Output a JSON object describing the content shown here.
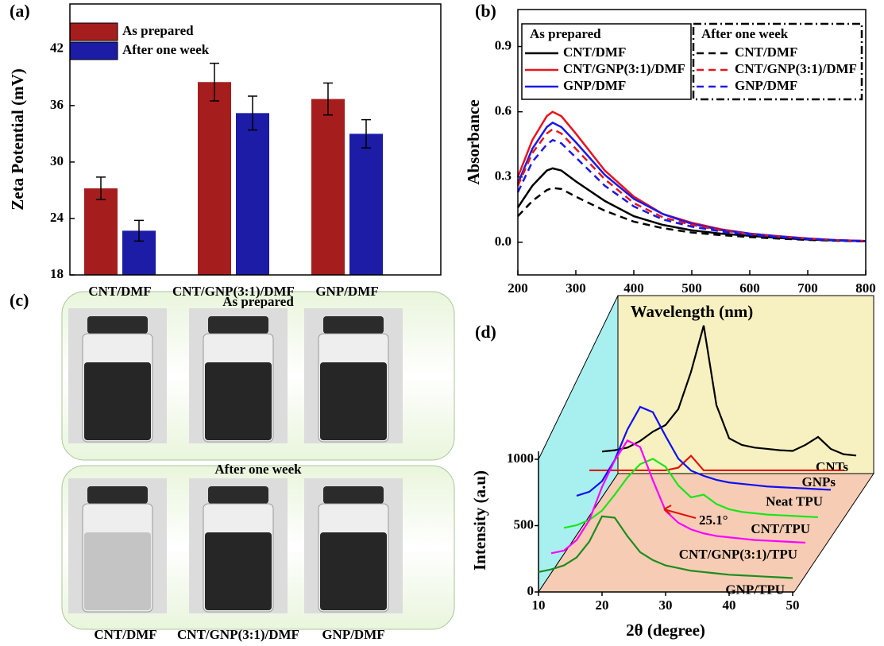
{
  "chart_data": [
    {
      "type": "bar",
      "label": "(a)",
      "ylabel": "Zeta Potential (mV)",
      "categories": [
        "CNT/DMF",
        "CNT/GNP(3:1)/DMF",
        "GNP/DMF"
      ],
      "series": [
        {
          "name": "As prepared",
          "color": "#a61d1d",
          "values": [
            27.2,
            38.5,
            36.7
          ],
          "errors": [
            1.2,
            2.0,
            1.7
          ]
        },
        {
          "name": "After one week",
          "color": "#1c1ca6",
          "values": [
            22.7,
            35.2,
            33.0
          ],
          "errors": [
            1.1,
            1.8,
            1.5
          ]
        }
      ],
      "ylim": [
        18,
        46.8
      ],
      "yticks": [
        18,
        24,
        30,
        36,
        42
      ],
      "legend": "upper left"
    },
    {
      "type": "line",
      "label": "(b)",
      "xlabel": "Wavelength (nm)",
      "ylabel": "Absorbance",
      "legend_titles": [
        "As prepared",
        "After one week"
      ],
      "x": [
        200,
        225,
        250,
        260,
        275,
        300,
        350,
        400,
        450,
        500,
        550,
        600,
        650,
        700,
        750,
        800
      ],
      "series": [
        {
          "name": "CNT/DMF",
          "color": "#000000",
          "linestyle": "solid",
          "values": [
            0.16,
            0.26,
            0.33,
            0.34,
            0.33,
            0.28,
            0.19,
            0.12,
            0.08,
            0.055,
            0.04,
            0.03,
            0.02,
            0.013,
            0.008,
            0.005
          ]
        },
        {
          "name": "CNT/GNP(3:1)/DMF",
          "color": "#e8141c",
          "linestyle": "solid",
          "values": [
            0.3,
            0.47,
            0.58,
            0.6,
            0.58,
            0.5,
            0.33,
            0.21,
            0.13,
            0.09,
            0.06,
            0.04,
            0.028,
            0.018,
            0.01,
            0.006
          ]
        },
        {
          "name": "GNP/DMF",
          "color": "#1a1ae6",
          "linestyle": "solid",
          "values": [
            0.27,
            0.43,
            0.53,
            0.55,
            0.53,
            0.46,
            0.31,
            0.2,
            0.13,
            0.085,
            0.057,
            0.04,
            0.027,
            0.017,
            0.01,
            0.006
          ]
        },
        {
          "name": "CNT/DMF",
          "color": "#000000",
          "linestyle": "dashed",
          "values": [
            0.12,
            0.19,
            0.24,
            0.25,
            0.245,
            0.21,
            0.145,
            0.095,
            0.065,
            0.045,
            0.033,
            0.024,
            0.017,
            0.011,
            0.007,
            0.004
          ]
        },
        {
          "name": "CNT/GNP(3:1)/DMF",
          "color": "#e8141c",
          "linestyle": "dashed",
          "values": [
            0.26,
            0.41,
            0.5,
            0.52,
            0.5,
            0.43,
            0.29,
            0.18,
            0.115,
            0.08,
            0.055,
            0.038,
            0.026,
            0.017,
            0.01,
            0.006
          ]
        },
        {
          "name": "GNP/DMF",
          "color": "#1a1ae6",
          "linestyle": "dashed",
          "values": [
            0.23,
            0.37,
            0.45,
            0.47,
            0.455,
            0.39,
            0.26,
            0.165,
            0.105,
            0.072,
            0.05,
            0.035,
            0.024,
            0.015,
            0.009,
            0.005
          ]
        }
      ],
      "xlim": [
        200,
        800
      ],
      "xticks": [
        200,
        300,
        400,
        500,
        600,
        700,
        800
      ],
      "ylim": [
        -0.15,
        1.07
      ],
      "yticks": [
        {
          "value": 0,
          "label": "0.0"
        },
        0.3,
        0.6,
        0.9
      ]
    },
    {
      "type": "waterfall",
      "label": "(d)",
      "xlabel": "2θ (degree)",
      "ylabel": "Intensity (a.u)",
      "annotation": "25.1°",
      "x": [
        10,
        12,
        14,
        16,
        18,
        20,
        22,
        24,
        26,
        28,
        30,
        32,
        34,
        36,
        38,
        40,
        42,
        44,
        46,
        48,
        50
      ],
      "series": [
        {
          "name": "CNTs",
          "color": "#000000",
          "values": [
            100,
            110,
            130,
            180,
            250,
            300,
            420,
            700,
            1050,
            450,
            200,
            150,
            130,
            120,
            110,
            105,
            150,
            210,
            120,
            80,
            70
          ]
        },
        {
          "name": "GNPs",
          "color": "#e3120b",
          "values": [
            150,
            150,
            150,
            150,
            150,
            150,
            150,
            170,
            260,
            150,
            150,
            150,
            150,
            150,
            150,
            150,
            150,
            150,
            150,
            150,
            150
          ]
        },
        {
          "name": "Neat TPU",
          "color": "#1010f0",
          "values": [
            150,
            180,
            260,
            420,
            650,
            820,
            780,
            600,
            430,
            340,
            300,
            270,
            250,
            240,
            230,
            220,
            215,
            210,
            205,
            200,
            195
          ]
        },
        {
          "name": "CNT/TPU",
          "color": "#19e619",
          "values": [
            100,
            120,
            160,
            230,
            350,
            480,
            580,
            620,
            560,
            420,
            330,
            350,
            280,
            240,
            220,
            210,
            200,
            195,
            190,
            185,
            180
          ]
        },
        {
          "name": "CNT/GNP(3:1)/TPU",
          "color": "#ff00ff",
          "values": [
            100,
            120,
            200,
            350,
            600,
            800,
            950,
            900,
            650,
            420,
            330,
            280,
            250,
            230,
            220,
            210,
            200,
            195,
            190,
            185,
            180
          ]
        },
        {
          "name": "GNP/TPU",
          "color": "#1e8c1e",
          "values": [
            150,
            170,
            200,
            260,
            380,
            570,
            560,
            420,
            300,
            240,
            200,
            180,
            160,
            150,
            140,
            130,
            125,
            120,
            115,
            110,
            105
          ]
        }
      ],
      "xlim": [
        10,
        50
      ],
      "xticks": [
        10,
        20,
        30,
        40,
        50
      ],
      "ylim": [
        0,
        1000
      ],
      "yticks": [
        0,
        500,
        1000
      ]
    }
  ],
  "photos": {
    "label": "(c)",
    "rows": [
      "As  prepared",
      "After one week"
    ],
    "captions": [
      "CNT/DMF",
      "CNT/GNP(3:1)/DMF",
      "GNP/DMF"
    ]
  }
}
